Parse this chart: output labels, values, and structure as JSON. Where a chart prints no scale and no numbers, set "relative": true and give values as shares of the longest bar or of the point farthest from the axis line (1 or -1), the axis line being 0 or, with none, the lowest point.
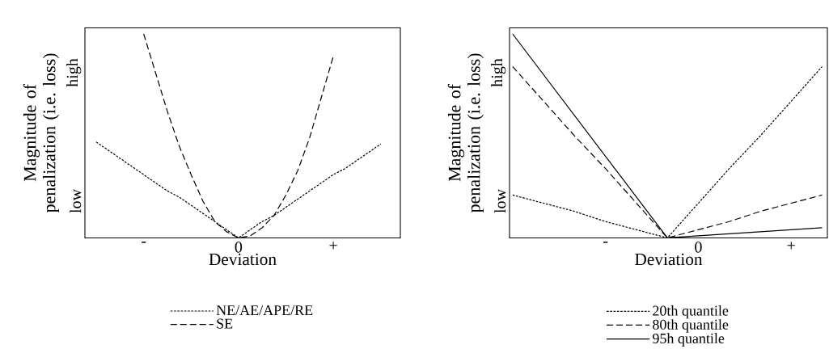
{
  "chart_data": [
    {
      "type": "line",
      "relative": true,
      "xlabel": "Deviation",
      "ylabel": "Magnitude of penalization (i.e. loss)",
      "categories": [
        null,
        null,
        null,
        null,
        "-",
        null,
        null,
        null,
        null,
        null,
        null,
        null,
        "0",
        null,
        null,
        null,
        null,
        null,
        null,
        null,
        "+",
        null,
        null,
        null,
        null
      ],
      "annotations": [
        "low",
        "high"
      ],
      "legend": "bottom",
      "series": [
        {
          "name": "NE/AE/APE/RE",
          "color": "#000000",
          "line_style": "dotted",
          "values": [
            0.47,
            0.43,
            0.39,
            0.35,
            0.31,
            0.27,
            0.23,
            0.2,
            0.16,
            0.12,
            0.08,
            0.04,
            0,
            0.04,
            0.08,
            0.11,
            0.15,
            0.19,
            0.23,
            0.27,
            0.31,
            0.34,
            0.38,
            0.42,
            0.46
          ]
        },
        {
          "name": "SE",
          "color": "#000000",
          "line_style": "dashed",
          "values": [
            null,
            null,
            null,
            null,
            1.0,
            0.81,
            0.62,
            0.45,
            0.31,
            0.18,
            0.08,
            0.03,
            0,
            0.01,
            0.05,
            0.11,
            0.21,
            0.33,
            0.49,
            0.69,
            0.89,
            null,
            null,
            null,
            null
          ]
        }
      ]
    },
    {
      "type": "line",
      "relative": true,
      "xlabel": "Deviation",
      "ylabel": "Magnitude of penalization (i.e. loss)",
      "categories": [
        null,
        null,
        null,
        "-",
        null,
        null,
        "0",
        null,
        null,
        "+",
        null
      ],
      "annotations": [
        "low",
        "high"
      ],
      "legend": "bottom",
      "series": [
        {
          "name": "20th quantile",
          "color": "#000000",
          "line_style": "dotted",
          "values": [
            0.21,
            0.17,
            0.13,
            0.08,
            0.04,
            0,
            0.17,
            0.34,
            0.5,
            0.67,
            0.84
          ]
        },
        {
          "name": "80th quantile",
          "color": "#000000",
          "line_style": "dashed",
          "values": [
            0.84,
            0.67,
            0.5,
            0.34,
            0.17,
            0,
            0.04,
            0.08,
            0.13,
            0.17,
            0.21
          ]
        },
        {
          "name": "95h quantile",
          "color": "#000000",
          "line_style": "solid",
          "values": [
            1,
            0.8,
            0.6,
            0.4,
            0.2,
            0,
            0.01,
            0.02,
            0.03,
            0.04,
            0.05
          ]
        }
      ]
    }
  ]
}
